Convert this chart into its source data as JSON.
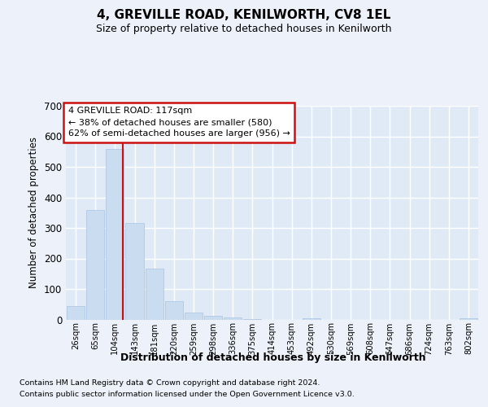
{
  "title": "4, GREVILLE ROAD, KENILWORTH, CV8 1EL",
  "subtitle": "Size of property relative to detached houses in Kenilworth",
  "xlabel": "Distribution of detached houses by size in Kenilworth",
  "ylabel": "Number of detached properties",
  "categories": [
    "26sqm",
    "65sqm",
    "104sqm",
    "143sqm",
    "181sqm",
    "220sqm",
    "259sqm",
    "298sqm",
    "336sqm",
    "375sqm",
    "414sqm",
    "453sqm",
    "492sqm",
    "530sqm",
    "569sqm",
    "608sqm",
    "647sqm",
    "686sqm",
    "724sqm",
    "763sqm",
    "802sqm"
  ],
  "values": [
    44,
    358,
    558,
    315,
    168,
    60,
    23,
    11,
    6,
    1,
    0,
    0,
    5,
    0,
    0,
    0,
    0,
    0,
    0,
    0,
    5
  ],
  "bar_color": "#c9dcf0",
  "bar_edgecolor": "#b0c8e4",
  "background_color": "#edf2fa",
  "plot_bg_color": "#e0eaf7",
  "grid_color": "#ffffff",
  "vline_x": 2.42,
  "vline_color": "#cc1111",
  "annotation_lines": [
    "4 GREVILLE ROAD: 117sqm",
    "← 38% of detached houses are smaller (580)",
    "62% of semi-detached houses are larger (956) →"
  ],
  "ylim": [
    0,
    700
  ],
  "yticks": [
    0,
    100,
    200,
    300,
    400,
    500,
    600,
    700
  ],
  "footnote1": "Contains HM Land Registry data © Crown copyright and database right 2024.",
  "footnote2": "Contains public sector information licensed under the Open Government Licence v3.0."
}
